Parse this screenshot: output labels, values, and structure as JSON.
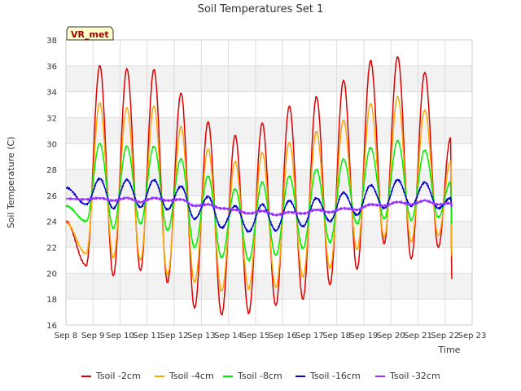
{
  "chart_data": {
    "type": "line",
    "title": "Soil Temperatures Set 1",
    "xlabel": "Time",
    "ylabel": "Soil Temperature (C)",
    "station_label": "VR_met",
    "x_ticks": [
      "Sep 8",
      "Sep 9",
      "Sep 10",
      "Sep 11",
      "Sep 12",
      "Sep 13",
      "Sep 14",
      "Sep 15",
      "Sep 16",
      "Sep 17",
      "Sep 18",
      "Sep 19",
      "Sep 20",
      "Sep 21",
      "Sep 22",
      "Sep 23"
    ],
    "xlim": [
      8,
      23
    ],
    "y_ticks": [
      "16",
      "18",
      "20",
      "22",
      "24",
      "26",
      "28",
      "30",
      "32",
      "34",
      "36",
      "38"
    ],
    "ylim": [
      16,
      38
    ],
    "grid": true,
    "legend_position": "bottom",
    "daily_x": [
      8.75,
      9.25,
      9.75,
      10.25,
      10.75,
      11.25,
      11.75,
      12.25,
      12.75,
      13.25,
      13.75,
      14.25,
      14.75,
      15.25,
      15.75,
      16.25,
      16.75,
      17.25,
      17.75,
      18.25,
      18.75,
      19.25,
      19.75,
      20.25,
      20.75,
      21.25,
      21.75,
      22.2
    ],
    "series": [
      {
        "name": "Tsoil -2cm",
        "color": "#dd0000",
        "start": 24.0,
        "end": 19.6,
        "values": [
          20.6,
          36.0,
          19.8,
          35.8,
          20.2,
          35.7,
          19.3,
          33.9,
          17.3,
          31.7,
          16.8,
          30.6,
          16.9,
          31.6,
          17.5,
          32.9,
          18.0,
          33.6,
          19.1,
          34.9,
          20.3,
          36.4,
          22.3,
          36.7,
          21.1,
          35.5,
          22.0,
          30.4
        ]
      },
      {
        "name": "Tsoil -4cm",
        "color": "#ffa500",
        "start": 23.9,
        "end": 21.4,
        "values": [
          21.5,
          33.1,
          21.2,
          32.8,
          21.0,
          32.9,
          19.9,
          31.3,
          19.3,
          29.6,
          18.6,
          28.6,
          18.8,
          29.3,
          18.9,
          30.1,
          19.7,
          30.9,
          20.4,
          31.8,
          21.8,
          33.1,
          22.8,
          33.6,
          22.4,
          32.6,
          22.9,
          28.6
        ]
      },
      {
        "name": "Tsoil -8cm",
        "color": "#00ee00",
        "start": 25.2,
        "end": 23.8,
        "values": [
          24.0,
          30.0,
          23.5,
          29.8,
          23.8,
          29.8,
          23.3,
          28.8,
          22.0,
          27.5,
          21.2,
          26.5,
          21.0,
          27.0,
          21.4,
          27.5,
          21.9,
          28.0,
          22.4,
          28.8,
          23.8,
          29.7,
          24.2,
          30.2,
          24.1,
          29.5,
          24.3,
          27.0
        ]
      },
      {
        "name": "Tsoil -16cm",
        "color": "#0000cc",
        "start": 26.6,
        "end": 25.2,
        "values": [
          25.3,
          27.3,
          25.0,
          27.2,
          25.1,
          27.2,
          24.9,
          26.7,
          24.2,
          25.9,
          23.5,
          25.2,
          23.2,
          25.3,
          23.3,
          25.6,
          23.6,
          25.8,
          24.0,
          26.2,
          24.5,
          26.8,
          25.0,
          27.2,
          25.2,
          27.0,
          25.0,
          25.8
        ]
      },
      {
        "name": "Tsoil -32cm",
        "color": "#9933ff",
        "start": 25.75,
        "end": 25.2,
        "values": [
          25.7,
          25.8,
          25.6,
          25.8,
          25.5,
          25.8,
          25.6,
          25.7,
          25.2,
          25.3,
          25.0,
          24.9,
          24.6,
          24.8,
          24.5,
          24.7,
          24.6,
          24.9,
          24.7,
          25.0,
          24.9,
          25.3,
          25.2,
          25.5,
          25.3,
          25.6,
          25.3,
          25.4
        ]
      }
    ]
  }
}
